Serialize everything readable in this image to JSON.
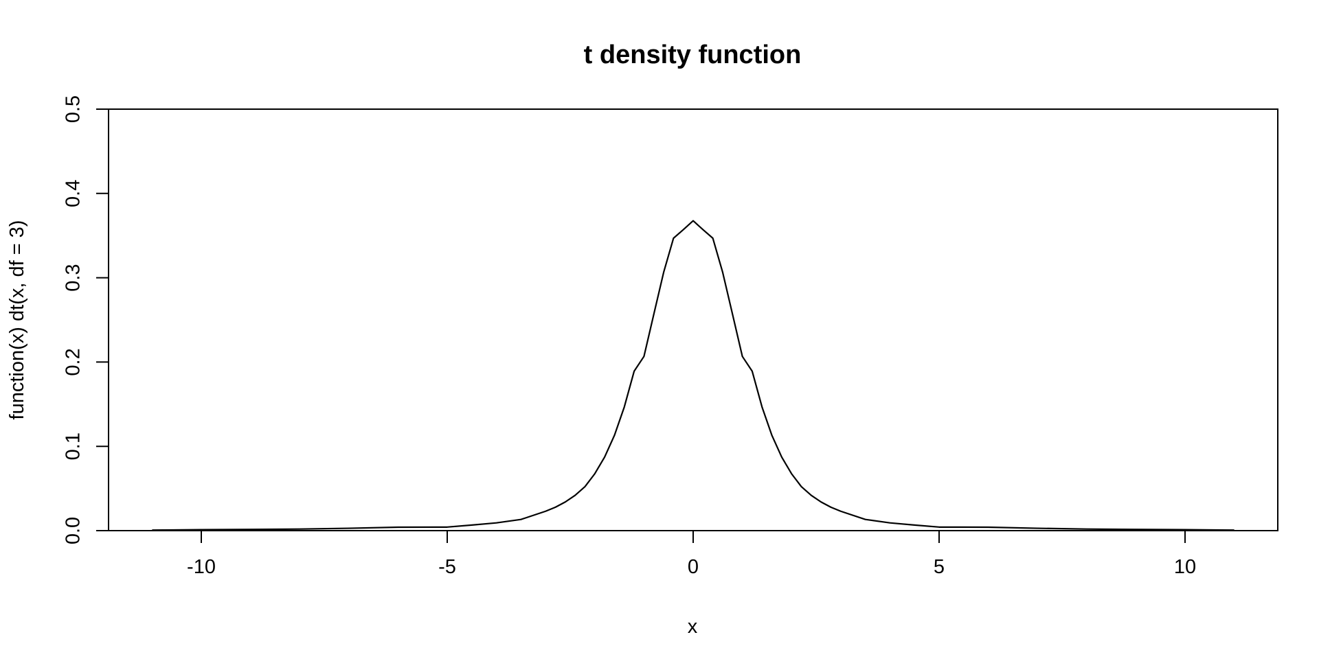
{
  "chart_data": {
    "type": "line",
    "title": "t density function",
    "xlabel": "x",
    "ylabel": "function(x) dt(x, df = 3)",
    "xlim": [
      -12,
      12
    ],
    "ylim": [
      0,
      0.5
    ],
    "x_ticks": [
      -10,
      -5,
      0,
      5,
      10
    ],
    "x_tick_labels": [
      "-10",
      "-5",
      "0",
      "5",
      "10"
    ],
    "y_ticks": [
      0.0,
      0.1,
      0.2,
      0.3,
      0.4,
      0.5
    ],
    "y_tick_labels": [
      "0.0",
      "0.1",
      "0.2",
      "0.3",
      "0.4",
      "0.5"
    ],
    "grid": false,
    "line_color": "#000000",
    "series": [
      {
        "x": [
          -11,
          -10,
          -9,
          -8,
          -7,
          -6,
          -5,
          -4.5,
          -4,
          -3.5,
          -3,
          -2.8,
          -2.6,
          -2.4,
          -2.2,
          -2,
          -1.8,
          -1.6,
          -1.4,
          -1.2,
          -1,
          -0.8,
          -0.6,
          -0.4,
          -0.2,
          0,
          0.2,
          0.4,
          0.6,
          0.8,
          1,
          1.2,
          1.4,
          1.6,
          1.8,
          2,
          2.2,
          2.4,
          2.6,
          2.8,
          3,
          3.5,
          4,
          4.5,
          5,
          6,
          7,
          8,
          9,
          10,
          11
        ],
        "y": [
          0.0006,
          0.0011,
          0.0014,
          0.0019,
          0.0028,
          0.0041,
          0.0042,
          0.0066,
          0.0092,
          0.0133,
          0.023,
          0.0278,
          0.034,
          0.0419,
          0.0522,
          0.0675,
          0.0873,
          0.1131,
          0.1467,
          0.1891,
          0.2067,
          0.2567,
          0.3064,
          0.3469,
          0.357,
          0.3676,
          0.357,
          0.3469,
          0.3064,
          0.2567,
          0.2067,
          0.1891,
          0.1467,
          0.1131,
          0.0873,
          0.0675,
          0.0522,
          0.0419,
          0.034,
          0.0278,
          0.023,
          0.0133,
          0.0092,
          0.0066,
          0.0042,
          0.0041,
          0.0028,
          0.0019,
          0.0014,
          0.0011,
          0.0006
        ]
      }
    ]
  }
}
